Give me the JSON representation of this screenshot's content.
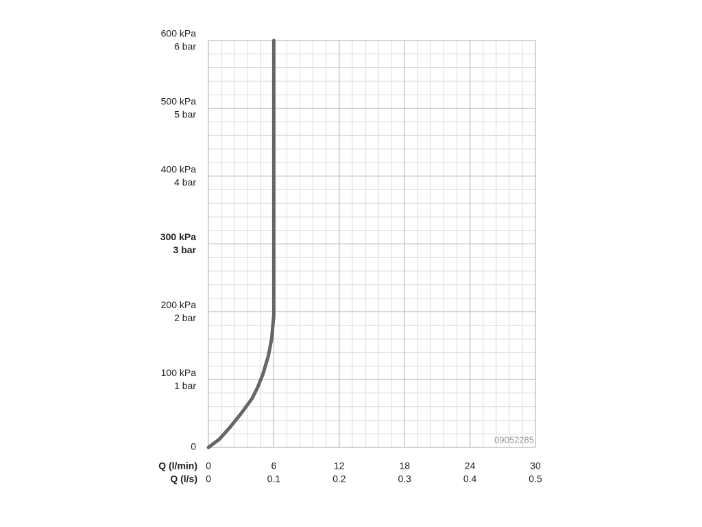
{
  "chart_data": {
    "type": "line",
    "x_label": "Q (l/min)",
    "x2_label": "Q (l/s)",
    "annotation": "09052285",
    "xlim": [
      0,
      30
    ],
    "xticks": [
      0,
      6,
      12,
      18,
      24,
      30
    ],
    "x2ticks": [
      0,
      0.1,
      0.2,
      0.3,
      0.4,
      0.5
    ],
    "ylim": [
      0,
      600
    ],
    "yticks": [
      0,
      {
        "value": 100,
        "label": "100 kPa",
        "label2": "1 bar"
      },
      {
        "value": 200,
        "label": "200 kPa",
        "label2": "2 bar"
      },
      {
        "value": 300,
        "label": "300 kPa",
        "label2": "3 bar",
        "bold": true
      },
      {
        "value": 400,
        "label": "400 kPa",
        "label2": "4 bar"
      },
      {
        "value": 500,
        "label": "500 kPa",
        "label2": "5 bar"
      },
      {
        "value": 600,
        "label": "600 kPa",
        "label2": "6 bar"
      }
    ],
    "grid": true,
    "series": [
      {
        "color": "#666666",
        "x": [
          0,
          1,
          2,
          3,
          4,
          4.5,
          5,
          5.5,
          5.8,
          6,
          6
        ],
        "values": [
          0,
          12,
          30,
          50,
          72,
          88,
          108,
          135,
          160,
          195,
          600
        ]
      }
    ]
  }
}
